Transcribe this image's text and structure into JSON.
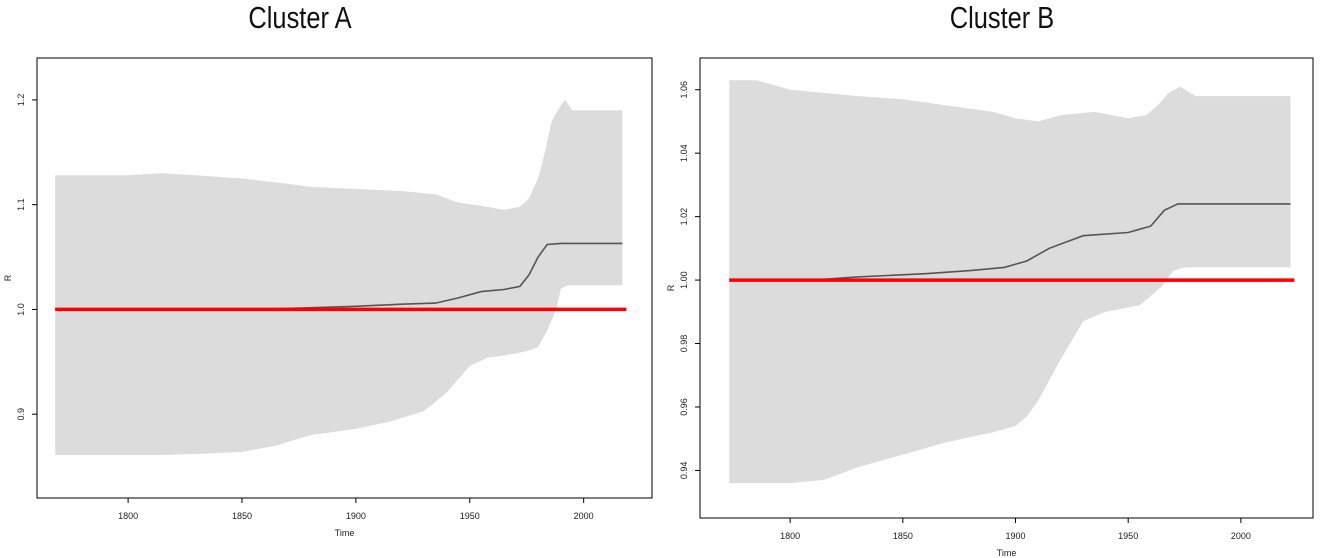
{
  "colors": {
    "band": "#dcdcdc",
    "median": "#555555",
    "reference": "#ff0000",
    "frame": "#000000"
  },
  "chart_data": [
    {
      "type": "area",
      "title": "Cluster A",
      "xlabel": "Time",
      "ylabel": "R",
      "xlim": [
        1760,
        2030
      ],
      "ylim": [
        0.82,
        1.24
      ],
      "xticks": [
        1800,
        1850,
        1900,
        1950,
        2000
      ],
      "xtick_labels": [
        "1800",
        "1850",
        "1900",
        "1950",
        "2000"
      ],
      "yticks": [
        0.9,
        1.0,
        1.1,
        1.2
      ],
      "ytick_labels": [
        "0.9",
        "1.0",
        "1.1",
        "1.2"
      ],
      "reference_line": 1.0,
      "band_upper": [
        [
          1768,
          1.128
        ],
        [
          1800,
          1.128
        ],
        [
          1815,
          1.13
        ],
        [
          1830,
          1.128
        ],
        [
          1850,
          1.125
        ],
        [
          1870,
          1.12
        ],
        [
          1880,
          1.117
        ],
        [
          1900,
          1.115
        ],
        [
          1920,
          1.113
        ],
        [
          1935,
          1.11
        ],
        [
          1945,
          1.102
        ],
        [
          1955,
          1.099
        ],
        [
          1965,
          1.095
        ],
        [
          1972,
          1.098
        ],
        [
          1976,
          1.106
        ],
        [
          1980,
          1.125
        ],
        [
          1983,
          1.15
        ],
        [
          1986,
          1.18
        ],
        [
          1990,
          1.195
        ],
        [
          1992,
          1.2
        ],
        [
          1995,
          1.19
        ],
        [
          2017,
          1.19
        ]
      ],
      "band_lower": [
        [
          1768,
          0.861
        ],
        [
          1800,
          0.861
        ],
        [
          1815,
          0.861
        ],
        [
          1830,
          0.862
        ],
        [
          1850,
          0.864
        ],
        [
          1865,
          0.87
        ],
        [
          1880,
          0.88
        ],
        [
          1900,
          0.886
        ],
        [
          1915,
          0.893
        ],
        [
          1930,
          0.903
        ],
        [
          1940,
          0.921
        ],
        [
          1950,
          0.946
        ],
        [
          1958,
          0.954
        ],
        [
          1965,
          0.956
        ],
        [
          1975,
          0.96
        ],
        [
          1980,
          0.964
        ],
        [
          1984,
          0.98
        ],
        [
          1988,
          1.0
        ],
        [
          1990,
          1.02
        ],
        [
          1993,
          1.023
        ],
        [
          2017,
          1.023
        ]
      ],
      "series": [
        {
          "values": [
            [
              1768,
              1.0
            ],
            [
              1850,
              1.0
            ],
            [
              1870,
              1.001
            ],
            [
              1900,
              1.003
            ],
            [
              1920,
              1.005
            ],
            [
              1935,
              1.006
            ],
            [
              1945,
              1.011
            ],
            [
              1955,
              1.017
            ],
            [
              1965,
              1.019
            ],
            [
              1972,
              1.022
            ],
            [
              1976,
              1.033
            ],
            [
              1980,
              1.05
            ],
            [
              1984,
              1.062
            ],
            [
              1990,
              1.063
            ],
            [
              2017,
              1.063
            ]
          ]
        }
      ]
    },
    {
      "type": "area",
      "title": "Cluster B",
      "xlabel": "Time",
      "ylabel": "R",
      "xlim": [
        1760,
        2032
      ],
      "ylim": [
        0.925,
        1.07
      ],
      "xticks": [
        1800,
        1850,
        1900,
        1950,
        2000
      ],
      "xtick_labels": [
        "1800",
        "1850",
        "1900",
        "1950",
        "2000"
      ],
      "yticks": [
        0.94,
        0.96,
        0.98,
        1.0,
        1.02,
        1.04,
        1.06
      ],
      "ytick_labels": [
        "0.94",
        "0.96",
        "0.98",
        "1.00",
        "1.02",
        "1.04",
        "1.06"
      ],
      "reference_line": 1.0,
      "band_upper": [
        [
          1773,
          1.063
        ],
        [
          1785,
          1.063
        ],
        [
          1800,
          1.06
        ],
        [
          1815,
          1.059
        ],
        [
          1830,
          1.058
        ],
        [
          1850,
          1.057
        ],
        [
          1870,
          1.055
        ],
        [
          1890,
          1.053
        ],
        [
          1900,
          1.051
        ],
        [
          1910,
          1.05
        ],
        [
          1920,
          1.052
        ],
        [
          1935,
          1.053
        ],
        [
          1950,
          1.051
        ],
        [
          1958,
          1.052
        ],
        [
          1963,
          1.055
        ],
        [
          1968,
          1.059
        ],
        [
          1973,
          1.061
        ],
        [
          1980,
          1.058
        ],
        [
          2022,
          1.058
        ]
      ],
      "band_lower": [
        [
          1773,
          0.936
        ],
        [
          1800,
          0.936
        ],
        [
          1815,
          0.937
        ],
        [
          1830,
          0.941
        ],
        [
          1850,
          0.945
        ],
        [
          1870,
          0.949
        ],
        [
          1890,
          0.952
        ],
        [
          1900,
          0.954
        ],
        [
          1905,
          0.957
        ],
        [
          1910,
          0.962
        ],
        [
          1920,
          0.975
        ],
        [
          1930,
          0.987
        ],
        [
          1940,
          0.99
        ],
        [
          1955,
          0.992
        ],
        [
          1965,
          0.998
        ],
        [
          1970,
          1.003
        ],
        [
          1975,
          1.004
        ],
        [
          2022,
          1.004
        ]
      ],
      "series": [
        {
          "values": [
            [
              1773,
              1.0
            ],
            [
              1810,
              1.0
            ],
            [
              1830,
              1.001
            ],
            [
              1860,
              1.002
            ],
            [
              1880,
              1.003
            ],
            [
              1895,
              1.004
            ],
            [
              1905,
              1.006
            ],
            [
              1915,
              1.01
            ],
            [
              1930,
              1.014
            ],
            [
              1950,
              1.015
            ],
            [
              1960,
              1.017
            ],
            [
              1966,
              1.022
            ],
            [
              1972,
              1.024
            ],
            [
              2022,
              1.024
            ]
          ]
        }
      ]
    }
  ]
}
